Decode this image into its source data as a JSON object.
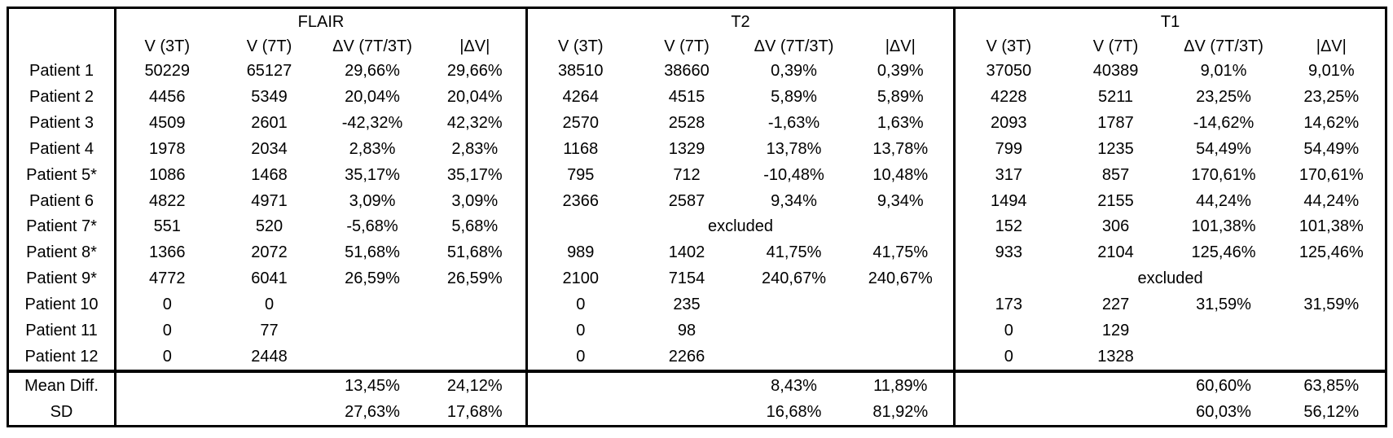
{
  "table": {
    "corner_label": "",
    "groups": [
      {
        "label": "FLAIR"
      },
      {
        "label": "T2"
      },
      {
        "label": "T1"
      }
    ],
    "sub_headers": [
      "V (3T)",
      "V (7T)",
      "ΔV (7T/3T)",
      "|ΔV|"
    ],
    "excluded_text": "excluded",
    "rows": [
      {
        "label": "Patient 1",
        "flair": [
          "50229",
          "65127",
          "29,66%",
          "29,66%"
        ],
        "t2": [
          "38510",
          "38660",
          "0,39%",
          "0,39%"
        ],
        "t1": [
          "37050",
          "40389",
          "9,01%",
          "9,01%"
        ]
      },
      {
        "label": "Patient 2",
        "flair": [
          "4456",
          "5349",
          "20,04%",
          "20,04%"
        ],
        "t2": [
          "4264",
          "4515",
          "5,89%",
          "5,89%"
        ],
        "t1": [
          "4228",
          "5211",
          "23,25%",
          "23,25%"
        ]
      },
      {
        "label": "Patient 3",
        "flair": [
          "4509",
          "2601",
          "-42,32%",
          "42,32%"
        ],
        "t2": [
          "2570",
          "2528",
          "-1,63%",
          "1,63%"
        ],
        "t1": [
          "2093",
          "1787",
          "-14,62%",
          "14,62%"
        ]
      },
      {
        "label": "Patient 4",
        "flair": [
          "1978",
          "2034",
          "2,83%",
          "2,83%"
        ],
        "t2": [
          "1168",
          "1329",
          "13,78%",
          "13,78%"
        ],
        "t1": [
          "799",
          "1235",
          "54,49%",
          "54,49%"
        ]
      },
      {
        "label": "Patient 5*",
        "flair": [
          "1086",
          "1468",
          "35,17%",
          "35,17%"
        ],
        "t2": [
          "795",
          "712",
          "-10,48%",
          "10,48%"
        ],
        "t1": [
          "317",
          "857",
          "170,61%",
          "170,61%"
        ]
      },
      {
        "label": "Patient 6",
        "flair": [
          "4822",
          "4971",
          "3,09%",
          "3,09%"
        ],
        "t2": [
          "2366",
          "2587",
          "9,34%",
          "9,34%"
        ],
        "t1": [
          "1494",
          "2155",
          "44,24%",
          "44,24%"
        ]
      },
      {
        "label": "Patient 7*",
        "flair": [
          "551",
          "520",
          "-5,68%",
          "5,68%"
        ],
        "t2": "excluded",
        "t1": [
          "152",
          "306",
          "101,38%",
          "101,38%"
        ]
      },
      {
        "label": "Patient 8*",
        "flair": [
          "1366",
          "2072",
          "51,68%",
          "51,68%"
        ],
        "t2": [
          "989",
          "1402",
          "41,75%",
          "41,75%"
        ],
        "t1": [
          "933",
          "2104",
          "125,46%",
          "125,46%"
        ]
      },
      {
        "label": "Patient 9*",
        "flair": [
          "4772",
          "6041",
          "26,59%",
          "26,59%"
        ],
        "t2": [
          "2100",
          "7154",
          "240,67%",
          "240,67%"
        ],
        "t1": "excluded"
      },
      {
        "label": "Patient 10",
        "flair": [
          "0",
          "0",
          "",
          ""
        ],
        "t2": [
          "0",
          "235",
          "",
          ""
        ],
        "t1": [
          "173",
          "227",
          "31,59%",
          "31,59%"
        ]
      },
      {
        "label": "Patient 11",
        "flair": [
          "0",
          "77",
          "",
          ""
        ],
        "t2": [
          "0",
          "98",
          "",
          ""
        ],
        "t1": [
          "0",
          "129",
          "",
          ""
        ]
      },
      {
        "label": "Patient 12",
        "flair": [
          "0",
          "2448",
          "",
          ""
        ],
        "t2": [
          "0",
          "2266",
          "",
          ""
        ],
        "t1": [
          "0",
          "1328",
          "",
          ""
        ]
      }
    ],
    "summary_rows": [
      {
        "label": "Mean Diff.",
        "flair": [
          "",
          "",
          "13,45%",
          "24,12%"
        ],
        "t2": [
          "",
          "",
          "8,43%",
          "11,89%"
        ],
        "t1": [
          "",
          "",
          "60,60%",
          "63,85%"
        ]
      },
      {
        "label": "SD",
        "flair": [
          "",
          "",
          "27,63%",
          "17,68%"
        ],
        "t2": [
          "",
          "",
          "16,68%",
          "81,92%"
        ],
        "t1": [
          "",
          "",
          "60,03%",
          "56,12%"
        ]
      }
    ]
  },
  "colors": {
    "border": "#000000",
    "text": "#000000",
    "background": "#ffffff"
  }
}
